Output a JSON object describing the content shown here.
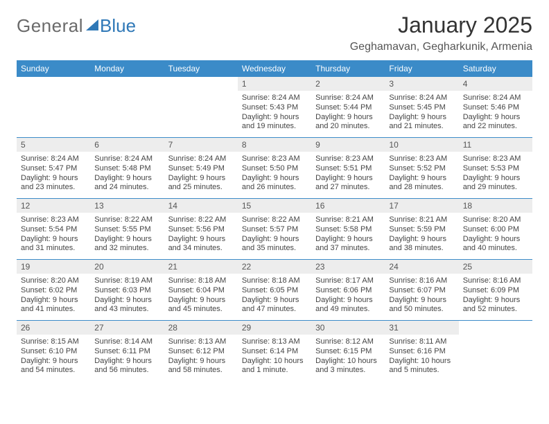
{
  "brand": {
    "part1": "General",
    "part2": "Blue",
    "logo_color": "#2f78b7",
    "text_color": "#6a6a6a"
  },
  "header": {
    "title": "January 2025",
    "location": "Geghamavan, Gegharkunik, Armenia"
  },
  "styling": {
    "header_bg": "#3b8bc8",
    "header_text": "#ffffff",
    "daynum_bg": "#ededed",
    "row_border": "#3b8bc8",
    "body_text": "#444444",
    "page_bg": "#ffffff",
    "title_fontsize": 32,
    "subtitle_fontsize": 16,
    "dayhead_fontsize": 12,
    "cell_fontsize": 11
  },
  "day_names": [
    "Sunday",
    "Monday",
    "Tuesday",
    "Wednesday",
    "Thursday",
    "Friday",
    "Saturday"
  ],
  "weeks": [
    [
      {
        "n": "",
        "sr": "",
        "ss": "",
        "dl": ""
      },
      {
        "n": "",
        "sr": "",
        "ss": "",
        "dl": ""
      },
      {
        "n": "",
        "sr": "",
        "ss": "",
        "dl": ""
      },
      {
        "n": "1",
        "sr": "8:24 AM",
        "ss": "5:43 PM",
        "dl": "9 hours and 19 minutes."
      },
      {
        "n": "2",
        "sr": "8:24 AM",
        "ss": "5:44 PM",
        "dl": "9 hours and 20 minutes."
      },
      {
        "n": "3",
        "sr": "8:24 AM",
        "ss": "5:45 PM",
        "dl": "9 hours and 21 minutes."
      },
      {
        "n": "4",
        "sr": "8:24 AM",
        "ss": "5:46 PM",
        "dl": "9 hours and 22 minutes."
      }
    ],
    [
      {
        "n": "5",
        "sr": "8:24 AM",
        "ss": "5:47 PM",
        "dl": "9 hours and 23 minutes."
      },
      {
        "n": "6",
        "sr": "8:24 AM",
        "ss": "5:48 PM",
        "dl": "9 hours and 24 minutes."
      },
      {
        "n": "7",
        "sr": "8:24 AM",
        "ss": "5:49 PM",
        "dl": "9 hours and 25 minutes."
      },
      {
        "n": "8",
        "sr": "8:23 AM",
        "ss": "5:50 PM",
        "dl": "9 hours and 26 minutes."
      },
      {
        "n": "9",
        "sr": "8:23 AM",
        "ss": "5:51 PM",
        "dl": "9 hours and 27 minutes."
      },
      {
        "n": "10",
        "sr": "8:23 AM",
        "ss": "5:52 PM",
        "dl": "9 hours and 28 minutes."
      },
      {
        "n": "11",
        "sr": "8:23 AM",
        "ss": "5:53 PM",
        "dl": "9 hours and 29 minutes."
      }
    ],
    [
      {
        "n": "12",
        "sr": "8:23 AM",
        "ss": "5:54 PM",
        "dl": "9 hours and 31 minutes."
      },
      {
        "n": "13",
        "sr": "8:22 AM",
        "ss": "5:55 PM",
        "dl": "9 hours and 32 minutes."
      },
      {
        "n": "14",
        "sr": "8:22 AM",
        "ss": "5:56 PM",
        "dl": "9 hours and 34 minutes."
      },
      {
        "n": "15",
        "sr": "8:22 AM",
        "ss": "5:57 PM",
        "dl": "9 hours and 35 minutes."
      },
      {
        "n": "16",
        "sr": "8:21 AM",
        "ss": "5:58 PM",
        "dl": "9 hours and 37 minutes."
      },
      {
        "n": "17",
        "sr": "8:21 AM",
        "ss": "5:59 PM",
        "dl": "9 hours and 38 minutes."
      },
      {
        "n": "18",
        "sr": "8:20 AM",
        "ss": "6:00 PM",
        "dl": "9 hours and 40 minutes."
      }
    ],
    [
      {
        "n": "19",
        "sr": "8:20 AM",
        "ss": "6:02 PM",
        "dl": "9 hours and 41 minutes."
      },
      {
        "n": "20",
        "sr": "8:19 AM",
        "ss": "6:03 PM",
        "dl": "9 hours and 43 minutes."
      },
      {
        "n": "21",
        "sr": "8:18 AM",
        "ss": "6:04 PM",
        "dl": "9 hours and 45 minutes."
      },
      {
        "n": "22",
        "sr": "8:18 AM",
        "ss": "6:05 PM",
        "dl": "9 hours and 47 minutes."
      },
      {
        "n": "23",
        "sr": "8:17 AM",
        "ss": "6:06 PM",
        "dl": "9 hours and 49 minutes."
      },
      {
        "n": "24",
        "sr": "8:16 AM",
        "ss": "6:07 PM",
        "dl": "9 hours and 50 minutes."
      },
      {
        "n": "25",
        "sr": "8:16 AM",
        "ss": "6:09 PM",
        "dl": "9 hours and 52 minutes."
      }
    ],
    [
      {
        "n": "26",
        "sr": "8:15 AM",
        "ss": "6:10 PM",
        "dl": "9 hours and 54 minutes."
      },
      {
        "n": "27",
        "sr": "8:14 AM",
        "ss": "6:11 PM",
        "dl": "9 hours and 56 minutes."
      },
      {
        "n": "28",
        "sr": "8:13 AM",
        "ss": "6:12 PM",
        "dl": "9 hours and 58 minutes."
      },
      {
        "n": "29",
        "sr": "8:13 AM",
        "ss": "6:14 PM",
        "dl": "10 hours and 1 minute."
      },
      {
        "n": "30",
        "sr": "8:12 AM",
        "ss": "6:15 PM",
        "dl": "10 hours and 3 minutes."
      },
      {
        "n": "31",
        "sr": "8:11 AM",
        "ss": "6:16 PM",
        "dl": "10 hours and 5 minutes."
      },
      {
        "n": "",
        "sr": "",
        "ss": "",
        "dl": ""
      }
    ]
  ],
  "labels": {
    "sunrise": "Sunrise:",
    "sunset": "Sunset:",
    "daylight": "Daylight:"
  }
}
